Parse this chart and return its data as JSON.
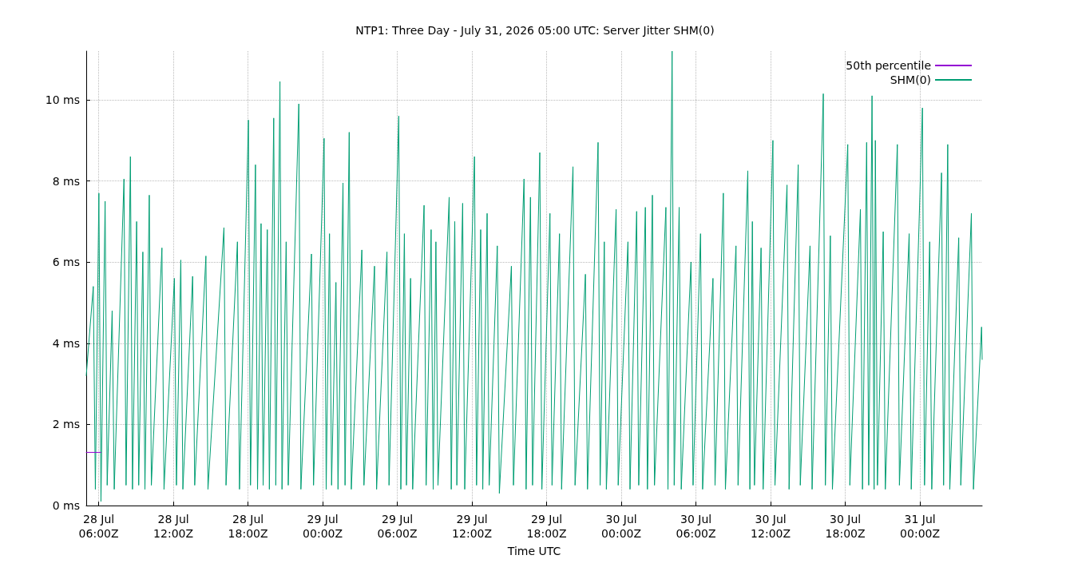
{
  "chart_data": {
    "type": "line",
    "title": "NTP1: Three Day - July 31, 2026 05:00 UTC: Server Jitter SHM(0)",
    "xlabel": "Time UTC",
    "xlim": [
      "2026-07-28T05:00",
      "2026-07-31T05:00"
    ],
    "xticks": [
      {
        "value": "2026-07-28T06:00",
        "label": "28 Jul\n06:00Z"
      },
      {
        "value": "2026-07-28T12:00",
        "label": "28 Jul\n12:00Z"
      },
      {
        "value": "2026-07-28T18:00",
        "label": "28 Jul\n18:00Z"
      },
      {
        "value": "2026-07-29T00:00",
        "label": "29 Jul\n00:00Z"
      },
      {
        "value": "2026-07-29T06:00",
        "label": "29 Jul\n06:00Z"
      },
      {
        "value": "2026-07-29T12:00",
        "label": "29 Jul\n12:00Z"
      },
      {
        "value": "2026-07-29T18:00",
        "label": "29 Jul\n18:00Z"
      },
      {
        "value": "2026-07-30T00:00",
        "label": "30 Jul\n00:00Z"
      },
      {
        "value": "2026-07-30T06:00",
        "label": "30 Jul\n06:00Z"
      },
      {
        "value": "2026-07-30T12:00",
        "label": "30 Jul\n12:00Z"
      },
      {
        "value": "2026-07-30T18:00",
        "label": "30 Jul\n18:00Z"
      },
      {
        "value": "2026-07-31T00:00",
        "label": "31 Jul\n00:00Z"
      }
    ],
    "ylim": [
      0,
      11.2
    ],
    "yticks": [
      {
        "value": 0,
        "label": "0 ms"
      },
      {
        "value": 2,
        "label": "2 ms"
      },
      {
        "value": 4,
        "label": "4 ms"
      },
      {
        "value": 6,
        "label": "6 ms"
      },
      {
        "value": 8,
        "label": "8 ms"
      },
      {
        "value": 10,
        "label": "10 ms"
      }
    ],
    "grid": true,
    "legend": "top right",
    "marker": "none",
    "line_style": "solid",
    "series": [
      {
        "name": "SHM(0)",
        "color": "#009e73",
        "x": [
          "2026-07-28T05:00",
          "2026-07-28T05:34",
          "2026-07-28T05:44",
          "2026-07-28T06:01",
          "2026-07-28T06:11",
          "2026-07-28T06:31",
          "2026-07-28T06:41",
          "2026-07-28T07:05",
          "2026-07-28T07:15",
          "2026-07-28T08:02",
          "2026-07-28T08:12",
          "2026-07-28T08:33",
          "2026-07-28T08:43",
          "2026-07-28T09:03",
          "2026-07-28T09:13",
          "2026-07-28T09:33",
          "2026-07-28T09:43",
          "2026-07-28T10:04",
          "2026-07-28T10:14",
          "2026-07-28T11:05",
          "2026-07-28T11:15",
          "2026-07-28T12:05",
          "2026-07-28T12:15",
          "2026-07-28T12:36",
          "2026-07-28T12:46",
          "2026-07-28T13:33",
          "2026-07-28T13:43",
          "2026-07-28T14:37",
          "2026-07-28T14:47",
          "2026-07-28T16:04",
          "2026-07-28T16:14",
          "2026-07-28T17:09",
          "2026-07-28T17:19",
          "2026-07-28T18:02",
          "2026-07-28T18:12",
          "2026-07-28T18:36",
          "2026-07-28T18:46",
          "2026-07-28T19:03",
          "2026-07-28T19:13",
          "2026-07-28T19:33",
          "2026-07-28T19:43",
          "2026-07-28T20:04",
          "2026-07-28T20:14",
          "2026-07-28T20:34",
          "2026-07-28T20:44",
          "2026-07-28T21:04",
          "2026-07-28T21:14",
          "2026-07-28T22:05",
          "2026-07-28T22:15",
          "2026-07-28T23:06",
          "2026-07-28T23:16",
          "2026-07-29T00:07",
          "2026-07-29T00:17",
          "2026-07-29T00:33",
          "2026-07-29T00:43",
          "2026-07-29T01:04",
          "2026-07-29T01:14",
          "2026-07-29T01:38",
          "2026-07-29T01:48",
          "2026-07-29T02:08",
          "2026-07-29T02:18",
          "2026-07-29T03:09",
          "2026-07-29T03:19",
          "2026-07-29T04:10",
          "2026-07-29T04:20",
          "2026-07-29T05:10",
          "2026-07-29T05:20",
          "2026-07-29T06:07",
          "2026-07-29T06:17",
          "2026-07-29T06:34",
          "2026-07-29T06:44",
          "2026-07-29T07:04",
          "2026-07-29T07:14",
          "2026-07-29T08:09",
          "2026-07-29T08:19",
          "2026-07-29T08:43",
          "2026-07-29T08:53",
          "2026-07-29T09:06",
          "2026-07-29T09:16",
          "2026-07-29T10:10",
          "2026-07-29T10:20",
          "2026-07-29T10:37",
          "2026-07-29T10:47",
          "2026-07-29T11:15",
          "2026-07-29T11:25",
          "2026-07-29T12:12",
          "2026-07-29T12:22",
          "2026-07-29T12:42",
          "2026-07-29T12:52",
          "2026-07-29T13:13",
          "2026-07-29T13:23",
          "2026-07-29T14:02",
          "2026-07-29T14:12",
          "2026-07-29T15:10",
          "2026-07-29T15:20",
          "2026-07-29T16:11",
          "2026-07-29T16:21",
          "2026-07-29T16:42",
          "2026-07-29T16:52",
          "2026-07-29T17:27",
          "2026-07-29T17:37",
          "2026-07-29T18:16",
          "2026-07-29T18:26",
          "2026-07-29T19:02",
          "2026-07-29T19:12",
          "2026-07-29T20:07",
          "2026-07-29T20:17",
          "2026-07-29T21:07",
          "2026-07-29T21:17",
          "2026-07-29T22:08",
          "2026-07-29T22:18",
          "2026-07-29T22:38",
          "2026-07-29T22:48",
          "2026-07-29T23:35",
          "2026-07-29T23:45",
          "2026-07-30T00:32",
          "2026-07-30T00:42",
          "2026-07-30T01:14",
          "2026-07-30T01:24",
          "2026-07-30T01:56",
          "2026-07-30T02:06",
          "2026-07-30T02:30",
          "2026-07-30T02:40",
          "2026-07-30T03:35",
          "2026-07-30T03:45",
          "2026-07-30T04:05",
          "2026-07-30T04:15",
          "2026-07-30T04:39",
          "2026-07-30T04:49",
          "2026-07-30T05:36",
          "2026-07-30T05:46",
          "2026-07-30T06:22",
          "2026-07-30T06:32",
          "2026-07-30T07:22",
          "2026-07-30T07:32",
          "2026-07-30T08:12",
          "2026-07-30T08:22",
          "2026-07-30T09:13",
          "2026-07-30T09:23",
          "2026-07-30T10:10",
          "2026-07-30T10:20",
          "2026-07-30T10:32",
          "2026-07-30T10:42",
          "2026-07-30T11:14",
          "2026-07-30T11:24",
          "2026-07-30T12:11",
          "2026-07-30T12:21",
          "2026-07-30T13:19",
          "2026-07-30T13:29",
          "2026-07-30T14:13",
          "2026-07-30T14:23",
          "2026-07-30T15:10",
          "2026-07-30T15:20",
          "2026-07-30T16:14",
          "2026-07-30T16:24",
          "2026-07-30T16:48",
          "2026-07-30T16:58",
          "2026-07-30T18:12",
          "2026-07-30T18:22",
          "2026-07-30T19:13",
          "2026-07-30T19:23",
          "2026-07-30T19:43",
          "2026-07-30T19:53",
          "2026-07-30T20:09",
          "2026-07-30T20:19",
          "2026-07-30T20:25",
          "2026-07-30T20:35",
          "2026-07-30T21:03",
          "2026-07-30T21:13",
          "2026-07-30T22:11",
          "2026-07-30T22:21",
          "2026-07-30T23:08",
          "2026-07-30T23:18",
          "2026-07-31T00:12",
          "2026-07-31T00:22",
          "2026-07-31T00:47",
          "2026-07-31T00:57",
          "2026-07-31T01:44",
          "2026-07-31T01:54",
          "2026-07-31T02:14",
          "2026-07-31T02:24",
          "2026-07-31T03:07",
          "2026-07-31T03:17",
          "2026-07-31T04:08",
          "2026-07-31T04:18",
          "2026-07-31T04:57",
          "2026-07-31T05:00"
        ],
        "values": [
          3.2,
          5.4,
          0.4,
          7.7,
          0.1,
          7.5,
          0.5,
          4.8,
          0.4,
          8.05,
          0.5,
          8.6,
          0.4,
          7.0,
          0.5,
          6.25,
          0.4,
          7.65,
          0.5,
          6.35,
          0.4,
          5.6,
          0.5,
          6.05,
          0.4,
          5.65,
          0.5,
          6.15,
          0.4,
          6.85,
          0.5,
          6.5,
          0.4,
          9.5,
          0.5,
          8.4,
          0.4,
          6.95,
          0.5,
          6.8,
          0.4,
          9.55,
          0.5,
          10.45,
          0.4,
          6.5,
          0.5,
          9.9,
          0.4,
          6.2,
          0.5,
          9.05,
          0.4,
          6.7,
          0.5,
          5.5,
          0.4,
          7.95,
          0.5,
          9.2,
          0.4,
          6.3,
          0.5,
          5.9,
          0.4,
          6.25,
          0.5,
          9.6,
          0.4,
          6.7,
          0.5,
          5.6,
          0.4,
          7.4,
          0.5,
          6.8,
          0.4,
          6.5,
          0.5,
          7.6,
          0.4,
          7.0,
          0.5,
          7.45,
          0.4,
          8.6,
          0.5,
          6.8,
          0.4,
          7.2,
          0.5,
          6.4,
          0.3,
          5.9,
          0.5,
          8.05,
          0.4,
          7.6,
          0.5,
          8.7,
          0.4,
          7.2,
          0.5,
          6.7,
          0.4,
          8.35,
          0.5,
          5.7,
          0.4,
          8.95,
          0.5,
          6.5,
          0.4,
          7.3,
          0.5,
          6.5,
          0.4,
          7.25,
          0.5,
          7.35,
          0.4,
          7.65,
          0.5,
          7.35,
          0.4,
          11.2,
          0.5,
          7.35,
          0.4,
          6.0,
          0.5,
          6.7,
          0.4,
          5.6,
          0.5,
          7.7,
          0.4,
          6.4,
          0.5,
          8.25,
          0.4,
          7.0,
          0.5,
          6.35,
          0.4,
          9.0,
          0.5,
          7.9,
          0.4,
          8.4,
          0.5,
          6.4,
          0.4,
          10.15,
          0.5,
          6.65,
          0.4,
          8.9,
          0.5,
          7.3,
          0.4,
          8.95,
          0.5,
          10.1,
          0.4,
          9.0,
          0.5,
          6.75,
          0.4,
          8.9,
          0.5,
          6.7,
          0.4,
          9.8,
          0.5,
          6.5,
          0.4,
          8.2,
          0.5,
          8.9,
          0.4,
          6.6,
          0.5,
          7.2,
          0.4,
          4.4,
          3.6
        ]
      },
      {
        "name": "50th percentile",
        "color": "#9400d3",
        "x": [
          "2026-07-28T05:00",
          "2026-07-28T06:10"
        ],
        "values": [
          1.31,
          1.31
        ]
      }
    ]
  }
}
